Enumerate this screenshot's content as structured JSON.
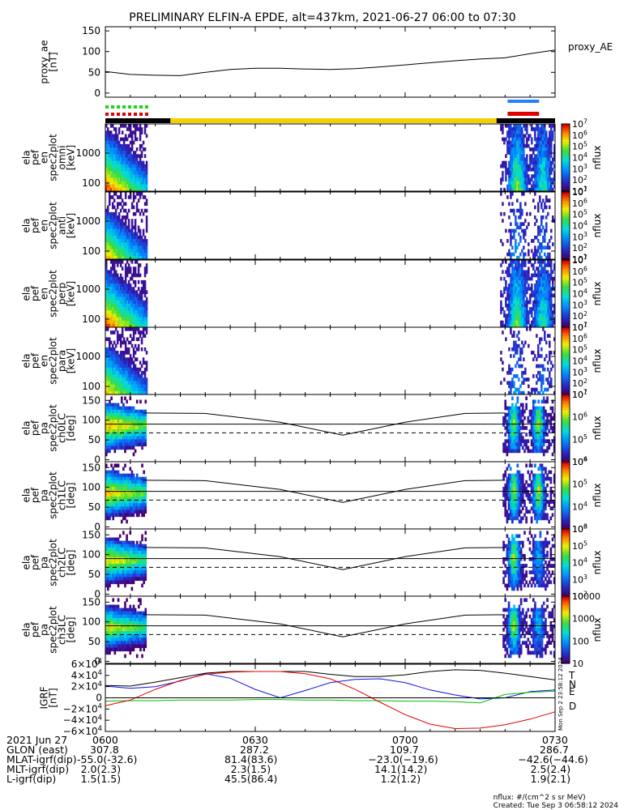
{
  "title": "PRELIMINARY ELFIN-A EPDE, alt=437km, 2021-06-27 06:00 to 07:30",
  "colors": {
    "state_bar": "#000000",
    "state_bar_science": "#f3d100",
    "flag_red": "#e00000",
    "flag_green": "#18d818",
    "flag_blue": "#2080ff",
    "bx": "#000000",
    "by": "#1010e0",
    "bz": "#00c000",
    "bd": "#e00000"
  },
  "chart_data": [
    {
      "type": "line",
      "name": "proxy_ae",
      "ylabel": "proxy_ae [nT]",
      "legend": "proxy_AE",
      "ylim": [
        -10,
        160
      ],
      "yticks": [
        "150",
        "100",
        "50",
        "0"
      ],
      "x_minutes": [
        0,
        5,
        10,
        15,
        20,
        25,
        30,
        35,
        40,
        45,
        50,
        55,
        60,
        65,
        70,
        75,
        80,
        85,
        90
      ],
      "values": [
        52,
        45,
        43,
        42,
        50,
        57,
        60,
        60,
        58,
        57,
        59,
        63,
        68,
        73,
        78,
        82,
        85,
        95,
        104
      ]
    },
    {
      "type": "heatmap",
      "name": "ela pef en spec2plot omni [keV]",
      "ylabel": [
        "ela",
        "pef",
        "en",
        "spec2plot",
        "omni",
        "[keV]"
      ],
      "yticks": [
        "1000",
        "100"
      ],
      "colorbar_ticks": [
        "10^7",
        "10^6",
        "10^5",
        "10^4",
        "10^3",
        "10^2",
        "10^1"
      ],
      "colorbar_label": "nflux"
    },
    {
      "type": "heatmap",
      "name": "ela pef en spec2plot anti [keV]",
      "ylabel": [
        "ela",
        "pef",
        "en",
        "spec2plot",
        "anti",
        "[keV]"
      ],
      "yticks": [
        "1000",
        "100"
      ],
      "colorbar_ticks": [
        "10^7",
        "10^6",
        "10^5",
        "10^4",
        "10^3",
        "10^2",
        "10^1"
      ],
      "colorbar_label": "nflux"
    },
    {
      "type": "heatmap",
      "name": "ela pef en spec2plot perp [keV]",
      "ylabel": [
        "ela",
        "pef",
        "en",
        "spec2plot",
        "perp",
        "[keV]"
      ],
      "yticks": [
        "1000",
        "100"
      ],
      "colorbar_ticks": [
        "10^7",
        "10^6",
        "10^5",
        "10^4",
        "10^3",
        "10^2",
        "10^1"
      ],
      "colorbar_label": "nflux"
    },
    {
      "type": "heatmap",
      "name": "ela pef en spec2plot para [keV]",
      "ylabel": [
        "ela",
        "pef",
        "en",
        "spec2plot",
        "para",
        "[keV]"
      ],
      "yticks": [
        "1000",
        "100"
      ],
      "colorbar_ticks": [
        "10^7",
        "10^6",
        "10^5",
        "10^4",
        "10^3",
        "10^2",
        "10^1"
      ],
      "colorbar_label": "nflux"
    },
    {
      "type": "heatmap",
      "name": "ela pef pa spec2plot ch0LC [deg]",
      "ylabel": [
        "ela",
        "pef",
        "pa",
        "spec2plot",
        "ch0LC",
        "[deg]"
      ],
      "yticks": [
        "150",
        "100",
        "50",
        "0"
      ],
      "colorbar_ticks": [
        "10^7",
        "10^6",
        "10^5",
        "10^4"
      ],
      "colorbar_label": "nflux"
    },
    {
      "type": "heatmap",
      "name": "ela pef pa spec2plot ch1LC [deg]",
      "ylabel": [
        "ela",
        "pef",
        "pa",
        "spec2plot",
        "ch1LC",
        "[deg]"
      ],
      "yticks": [
        "150",
        "100",
        "50",
        "0"
      ],
      "colorbar_ticks": [
        "10^6",
        "10^5",
        "10^4",
        "10^3"
      ],
      "colorbar_label": "nflux"
    },
    {
      "type": "heatmap",
      "name": "ela pef pa spec2plot ch2LC [deg]",
      "ylabel": [
        "ela",
        "pef",
        "pa",
        "spec2plot",
        "ch2LC",
        "[deg]"
      ],
      "yticks": [
        "150",
        "100",
        "50",
        "0"
      ],
      "colorbar_ticks": [
        "10^6",
        "10^5",
        "10^4",
        "10^3",
        "10^2"
      ],
      "colorbar_label": "nflux"
    },
    {
      "type": "heatmap",
      "name": "ela pef pa spec2plot ch3LC [deg]",
      "ylabel": [
        "ela",
        "pef",
        "pa",
        "spec2plot",
        "ch3LC",
        "[deg]"
      ],
      "yticks": [
        "150",
        "100",
        "50",
        "0"
      ],
      "colorbar_ticks": [
        "10000",
        "1000",
        "100",
        "10"
      ],
      "colorbar_label": "nflux"
    },
    {
      "type": "line",
      "name": "IGRF [nT]",
      "ylabel": [
        "IGRF",
        "[nT]"
      ],
      "yticks": [
        "6×10^4",
        "4×10^4",
        "2×10^4",
        "0",
        "−2×10^4",
        "−4×10^4",
        "−6×10^4"
      ],
      "ylim": [
        -60000,
        60000
      ],
      "legend": [
        "T",
        "N",
        "E",
        "D"
      ],
      "x_minutes": [
        0,
        5,
        10,
        15,
        20,
        25,
        30,
        35,
        40,
        45,
        50,
        55,
        60,
        65,
        70,
        75,
        80,
        85,
        90
      ],
      "series": [
        {
          "name": "T",
          "values": [
            22000,
            21000,
            28000,
            36000,
            44000,
            47000,
            47000,
            47000,
            47000,
            42000,
            38000,
            38000,
            41000,
            47000,
            50000,
            49000,
            44000,
            38000,
            32000
          ]
        },
        {
          "name": "N",
          "values": [
            21000,
            17000,
            20000,
            30000,
            43000,
            35000,
            15000,
            0,
            13000,
            27000,
            33000,
            34000,
            27000,
            14000,
            5000,
            -2000,
            0,
            11000,
            14000
          ]
        },
        {
          "name": "E",
          "values": [
            -6000,
            -5000,
            -5000,
            -4000,
            -4000,
            -4000,
            -3000,
            -3000,
            -4000,
            -4000,
            -5000,
            -5000,
            -6000,
            -6000,
            -7000,
            -9000,
            6000,
            10000,
            12000
          ]
        },
        {
          "name": "D",
          "values": [
            -14000,
            -4000,
            15000,
            31000,
            42000,
            46000,
            47000,
            47000,
            43000,
            34000,
            15000,
            -8000,
            -30000,
            -47000,
            -55000,
            -54000,
            -48000,
            -38000,
            -25000
          ]
        }
      ]
    }
  ],
  "pa_overlay": {
    "solid_top": [
      118,
      117,
      95,
      62,
      95,
      117,
      118
    ],
    "solid_mid": 90,
    "dashed": 68
  },
  "xaxis": {
    "ticks": [
      "0600",
      "0630",
      "0700",
      "0730"
    ],
    "date": "2021 Jun 27",
    "rows": [
      {
        "label": "GLON (east)",
        "values": [
          "307.8",
          "287.2",
          "109.7",
          "286.7"
        ]
      },
      {
        "label": "MLAT-igrf(dip)",
        "values": [
          "-55.0(-32.6)",
          "81.4(83.6)",
          "−23.0(−19.6)",
          "−42.6(−44.6)"
        ]
      },
      {
        "label": "MLT-igrf(dip)",
        "values": [
          "2.0(2.3)",
          "2.3(1.5)",
          "14.1(14.2)",
          "2.5(2.4)"
        ]
      },
      {
        "label": "L-igrf(dip)",
        "values": [
          "1.5(1.5)",
          "45.5(86.4)",
          "1.2(1.2)",
          "1.9(2.1)"
        ]
      }
    ]
  },
  "footer": {
    "units": "nflux: #/(cm^2 s sr MeV)",
    "created": "Created: Tue Sep  3 06:58:12 2024",
    "side_stamp": "Mon Sep  2 23:58:12 2024"
  }
}
